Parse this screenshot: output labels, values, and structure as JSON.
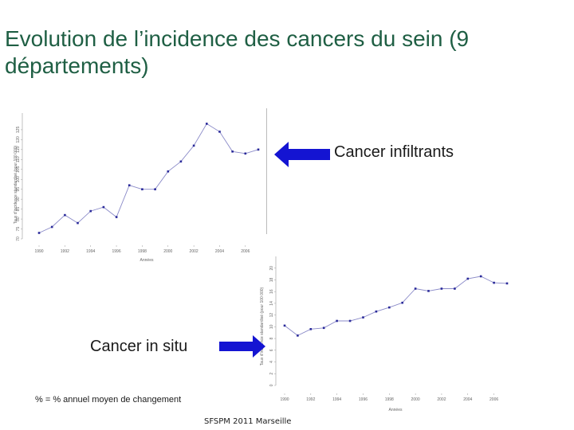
{
  "slide": {
    "title": "Evolution de l’incidence des cancers du sein (9 départements)",
    "label_infiltrant": "Cancer infiltrants",
    "label_in_situ": "Cancer in situ",
    "note": "% = % annuel moyen de changement",
    "footer": "SFSPM 2011 Marseille",
    "arrow_color": "#1414d2"
  },
  "chart_data": [
    {
      "type": "line",
      "series": [
        {
          "x": [
            1990,
            1991,
            1992,
            1993,
            1994,
            1995,
            1996,
            1997,
            1998,
            1999,
            2000,
            2001,
            2002,
            2003,
            2004,
            2005,
            2006,
            2007
          ],
          "y": [
            73,
            76,
            82,
            78,
            84,
            86,
            81,
            97,
            95,
            95,
            104,
            109,
            117,
            128,
            124,
            114,
            113,
            115
          ]
        }
      ],
      "x_ticks": [
        "1990",
        "1992",
        "1994",
        "1996",
        "1998",
        "2000",
        "2002",
        "2004",
        "2006"
      ],
      "y_ticks": [
        "70",
        "75",
        "80",
        "85",
        "90",
        "95",
        "100",
        "105",
        "110",
        "115",
        "120",
        "125"
      ],
      "xlim": [
        1990,
        2007
      ],
      "ylim": [
        70,
        135
      ],
      "xlabel": "Années",
      "ylabel": "Taux d’incidence standardisé (pour 100 000)",
      "grid": false
    },
    {
      "type": "line",
      "series": [
        {
          "x": [
            1990,
            1991,
            1992,
            1993,
            1994,
            1995,
            1996,
            1997,
            1998,
            1999,
            2000,
            2001,
            2002,
            2003,
            2004,
            2005,
            2006,
            2007
          ],
          "y": [
            10.2,
            8.5,
            9.6,
            9.8,
            11,
            11,
            11.6,
            12.6,
            13.3,
            14.1,
            16.5,
            16.1,
            16.5,
            16.5,
            18.2,
            18.6,
            17.5,
            17.4
          ]
        }
      ],
      "x_ticks": [
        "1990",
        "1992",
        "1994",
        "1996",
        "1998",
        "2000",
        "2002",
        "2004",
        "2006"
      ],
      "y_ticks": [
        "0",
        "2",
        "4",
        "6",
        "8",
        "10",
        "12",
        "14",
        "16",
        "18",
        "20"
      ],
      "xlim": [
        1990,
        2007
      ],
      "ylim": [
        0,
        22
      ],
      "xlabel": "Années",
      "ylabel": "Taux d’incidence standardisé (pour 100 000)",
      "grid": false
    }
  ]
}
